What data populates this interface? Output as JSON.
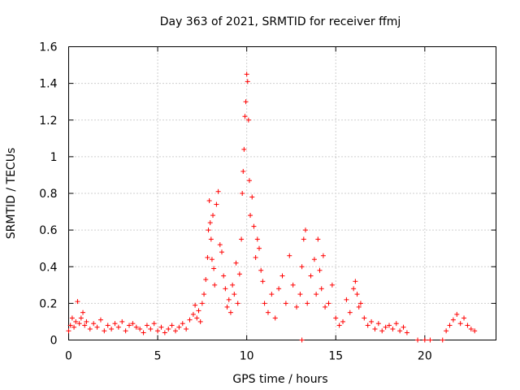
{
  "chart_data": {
    "type": "scatter",
    "title": "Day 363 of 2021, SRMTID for receiver ffmj",
    "xlabel": "GPS time / hours",
    "ylabel": "SRMTID / TECUs",
    "xlim": [
      0,
      24
    ],
    "ylim": [
      0,
      1.6
    ],
    "xticks": [
      0,
      5,
      10,
      15,
      20
    ],
    "xtick_labels": [
      "0",
      "5",
      "10",
      "15",
      "20"
    ],
    "yticks": [
      0,
      0.2,
      0.4,
      0.6,
      0.8,
      1.0,
      1.2,
      1.4,
      1.6
    ],
    "ytick_labels": [
      "0",
      "0.2",
      "0.4",
      "0.6",
      "0.8",
      "1",
      "1.2",
      "1.4",
      "1.6"
    ],
    "grid": true,
    "marker": "plus",
    "series": [
      {
        "name": "SRMTID",
        "color": "#ff0000",
        "x": [
          0.0,
          0.1,
          0.2,
          0.3,
          0.4,
          0.5,
          0.6,
          0.7,
          0.8,
          0.9,
          1.0,
          1.2,
          1.4,
          1.6,
          1.8,
          2.0,
          2.2,
          2.4,
          2.6,
          2.8,
          3.0,
          3.2,
          3.4,
          3.6,
          3.8,
          4.0,
          4.2,
          4.4,
          4.6,
          4.8,
          5.0,
          5.2,
          5.4,
          5.6,
          5.8,
          6.0,
          6.2,
          6.4,
          6.6,
          6.8,
          7.0,
          7.1,
          7.2,
          7.3,
          7.4,
          7.5,
          7.6,
          7.7,
          7.8,
          7.85,
          7.9,
          7.95,
          8.0,
          8.05,
          8.1,
          8.15,
          8.2,
          8.3,
          8.4,
          8.5,
          8.6,
          8.7,
          8.8,
          8.9,
          9.0,
          9.1,
          9.2,
          9.3,
          9.4,
          9.5,
          9.6,
          9.7,
          9.75,
          9.8,
          9.85,
          9.9,
          9.95,
          10.0,
          10.05,
          10.1,
          10.15,
          10.2,
          10.3,
          10.4,
          10.5,
          10.6,
          10.7,
          10.8,
          10.9,
          11.0,
          11.2,
          11.4,
          11.6,
          11.8,
          12.0,
          12.2,
          12.4,
          12.6,
          12.8,
          13.0,
          13.1,
          13.2,
          13.3,
          13.4,
          13.6,
          13.8,
          13.9,
          14.0,
          14.1,
          14.2,
          14.3,
          14.4,
          14.6,
          14.8,
          15.0,
          15.2,
          15.4,
          15.6,
          15.8,
          16.0,
          16.1,
          16.2,
          16.3,
          16.4,
          16.6,
          16.8,
          17.0,
          17.2,
          17.4,
          17.6,
          17.8,
          18.0,
          18.2,
          18.4,
          18.6,
          18.8,
          19.0,
          20.0,
          20.3,
          21.2,
          21.4,
          21.6,
          21.8,
          22.0,
          22.2,
          22.4,
          22.6,
          22.8,
          13.1,
          21.0,
          19.6
        ],
        "y": [
          0.05,
          0.08,
          0.12,
          0.07,
          0.1,
          0.21,
          0.09,
          0.12,
          0.15,
          0.08,
          0.1,
          0.06,
          0.09,
          0.07,
          0.11,
          0.05,
          0.08,
          0.06,
          0.09,
          0.07,
          0.1,
          0.05,
          0.08,
          0.09,
          0.07,
          0.06,
          0.04,
          0.08,
          0.06,
          0.09,
          0.05,
          0.07,
          0.04,
          0.06,
          0.08,
          0.05,
          0.07,
          0.09,
          0.06,
          0.11,
          0.14,
          0.19,
          0.12,
          0.16,
          0.1,
          0.2,
          0.25,
          0.33,
          0.45,
          0.6,
          0.76,
          0.64,
          0.55,
          0.44,
          0.68,
          0.39,
          0.3,
          0.74,
          0.81,
          0.52,
          0.48,
          0.35,
          0.28,
          0.18,
          0.22,
          0.15,
          0.3,
          0.25,
          0.42,
          0.2,
          0.36,
          0.55,
          0.8,
          0.92,
          1.04,
          1.22,
          1.3,
          1.45,
          1.41,
          1.2,
          0.87,
          0.68,
          0.78,
          0.62,
          0.45,
          0.55,
          0.5,
          0.38,
          0.32,
          0.2,
          0.15,
          0.25,
          0.12,
          0.28,
          0.35,
          0.2,
          0.46,
          0.3,
          0.18,
          0.25,
          0.4,
          0.55,
          0.6,
          0.2,
          0.35,
          0.44,
          0.25,
          0.55,
          0.38,
          0.28,
          0.46,
          0.18,
          0.2,
          0.3,
          0.12,
          0.08,
          0.1,
          0.22,
          0.15,
          0.28,
          0.32,
          0.25,
          0.18,
          0.2,
          0.12,
          0.08,
          0.1,
          0.06,
          0.09,
          0.05,
          0.07,
          0.08,
          0.06,
          0.09,
          0.05,
          0.07,
          0.04,
          0.0,
          0.0,
          0.05,
          0.08,
          0.11,
          0.14,
          0.09,
          0.12,
          0.08,
          0.06,
          0.05,
          0.0,
          0.0,
          0.0
        ]
      }
    ]
  }
}
